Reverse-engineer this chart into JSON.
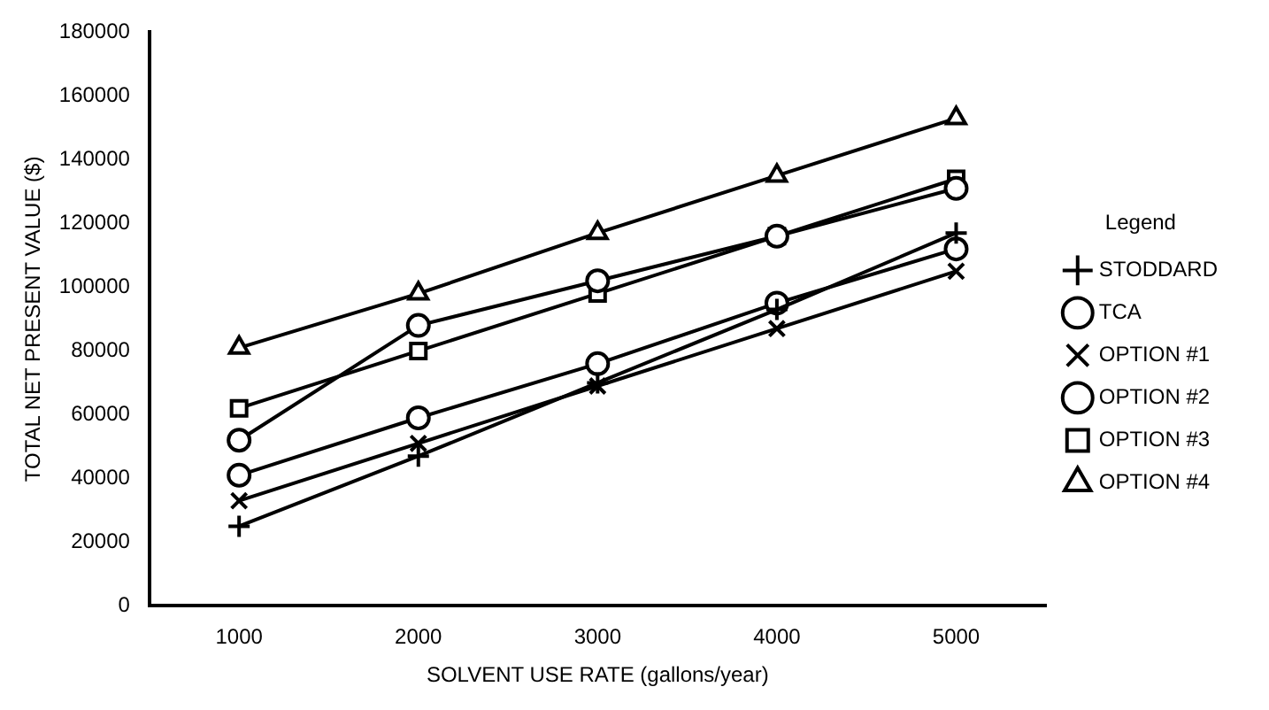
{
  "chart_data": {
    "type": "line",
    "xlabel": "SOLVENT USE RATE (gallons/year)",
    "ylabel": "TOTAL NET PRESENT VALUE ($)",
    "legend_title": "Legend",
    "legend": "right",
    "grid": false,
    "line_style": "solid",
    "categories": [
      "1000",
      "2000",
      "3000",
      "4000",
      "5000"
    ],
    "ylim": [
      0,
      180000
    ],
    "yticks": [
      0,
      20000,
      40000,
      60000,
      80000,
      100000,
      120000,
      140000,
      160000,
      180000
    ],
    "series": [
      {
        "name": "STODDARD",
        "color": "#000000",
        "marker": "cross",
        "values": [
          25000,
          47000,
          70000,
          93000,
          117000
        ]
      },
      {
        "name": "TCA",
        "color": "#000000",
        "marker": "circle",
        "values": [
          52000,
          88000,
          102000,
          116000,
          131000
        ]
      },
      {
        "name": "OPTION #1",
        "color": "#000000",
        "marker": "cross",
        "values": [
          33000,
          51000,
          69000,
          87000,
          105000
        ]
      },
      {
        "name": "OPTION #2",
        "color": "#000000",
        "marker": "circle",
        "values": [
          41000,
          59000,
          76000,
          95000,
          112000
        ]
      },
      {
        "name": "OPTION #3",
        "color": "#000000",
        "marker": "square",
        "values": [
          62000,
          80000,
          98000,
          116000,
          134000
        ]
      },
      {
        "name": "OPTION #4",
        "color": "#000000",
        "marker": "triangle",
        "values": [
          81000,
          98000,
          117000,
          135000,
          153000
        ]
      }
    ]
  }
}
